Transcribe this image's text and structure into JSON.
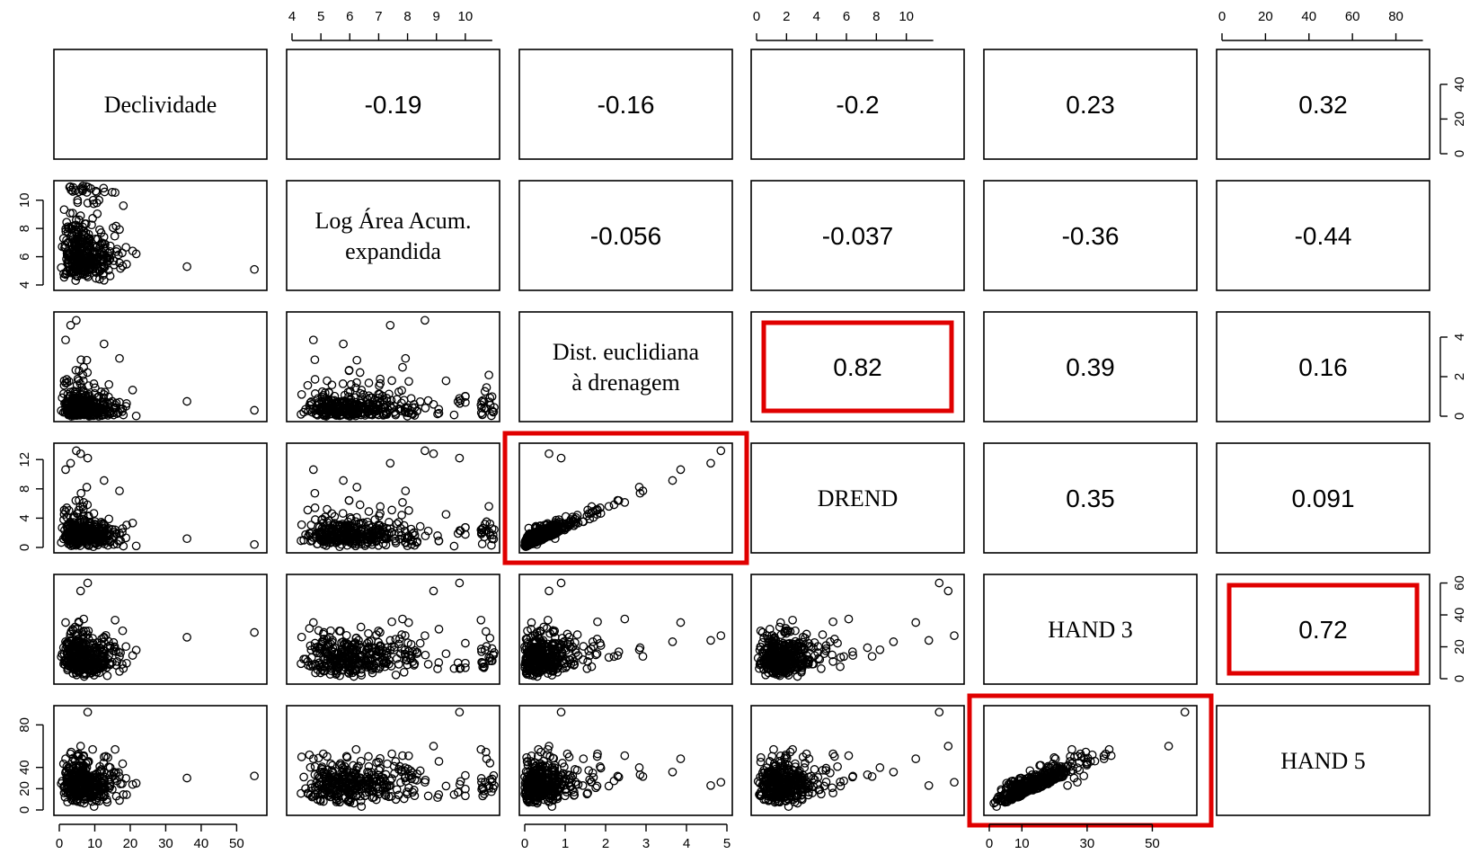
{
  "chart_data": {
    "type": "scatter",
    "layout": "pairs-matrix",
    "variables": [
      {
        "name": "Declividade",
        "label_lines": [
          "Declividade"
        ],
        "ticks": [
          0,
          10,
          20,
          30,
          40,
          50
        ],
        "ticks_side": [
          0,
          20,
          40
        ],
        "range": [
          0,
          57
        ]
      },
      {
        "name": "Log Área Acum. expandida",
        "label_lines": [
          "Log Área Acum.",
          "expandida"
        ],
        "ticks": [
          4,
          5,
          6,
          7,
          8,
          9,
          10
        ],
        "ticks_side": [
          4,
          6,
          8,
          10
        ],
        "range": [
          4,
          11
        ]
      },
      {
        "name": "Dist. euclidiana à drenagem",
        "label_lines": [
          "Dist. euclidiana",
          "à drenagem"
        ],
        "ticks": [
          0,
          1,
          2,
          3,
          4,
          5
        ],
        "ticks_side": [
          0,
          2,
          4
        ],
        "range": [
          0,
          5
        ]
      },
      {
        "name": "DREND",
        "label_lines": [
          "DREND"
        ],
        "ticks": [
          0,
          2,
          4,
          6,
          8,
          10
        ],
        "ticks_side": [
          0,
          4,
          8,
          12
        ],
        "range": [
          0,
          13.5
        ]
      },
      {
        "name": "HAND 3",
        "label_lines": [
          "HAND 3"
        ],
        "ticks": [
          0,
          10,
          30,
          50
        ],
        "ticks_side": [
          0,
          20,
          40,
          60
        ],
        "range": [
          0,
          62
        ]
      },
      {
        "name": "HAND 5",
        "label_lines": [
          "HAND 5"
        ],
        "ticks": [
          0,
          20,
          40,
          60,
          80
        ],
        "ticks_side": [
          0,
          20,
          40,
          80
        ],
        "range": [
          0,
          93
        ]
      }
    ],
    "correlations": [
      {
        "row": 0,
        "col": 1,
        "value": "-0.19"
      },
      {
        "row": 0,
        "col": 2,
        "value": "-0.16"
      },
      {
        "row": 0,
        "col": 3,
        "value": "-0.2"
      },
      {
        "row": 0,
        "col": 4,
        "value": "0.23"
      },
      {
        "row": 0,
        "col": 5,
        "value": "0.32"
      },
      {
        "row": 1,
        "col": 2,
        "value": "-0.056"
      },
      {
        "row": 1,
        "col": 3,
        "value": "-0.037"
      },
      {
        "row": 1,
        "col": 4,
        "value": "-0.36"
      },
      {
        "row": 1,
        "col": 5,
        "value": "-0.44"
      },
      {
        "row": 2,
        "col": 3,
        "value": "0.82",
        "highlight": true
      },
      {
        "row": 2,
        "col": 4,
        "value": "0.39"
      },
      {
        "row": 2,
        "col": 5,
        "value": "0.16"
      },
      {
        "row": 3,
        "col": 4,
        "value": "0.35"
      },
      {
        "row": 3,
        "col": 5,
        "value": "0.091"
      },
      {
        "row": 4,
        "col": 5,
        "value": "0.72",
        "highlight": true
      }
    ],
    "highlighted_scatter": [
      {
        "row": 3,
        "col": 2
      },
      {
        "row": 5,
        "col": 4
      }
    ],
    "highlight_color": "#e00000",
    "marker": "open circle"
  }
}
